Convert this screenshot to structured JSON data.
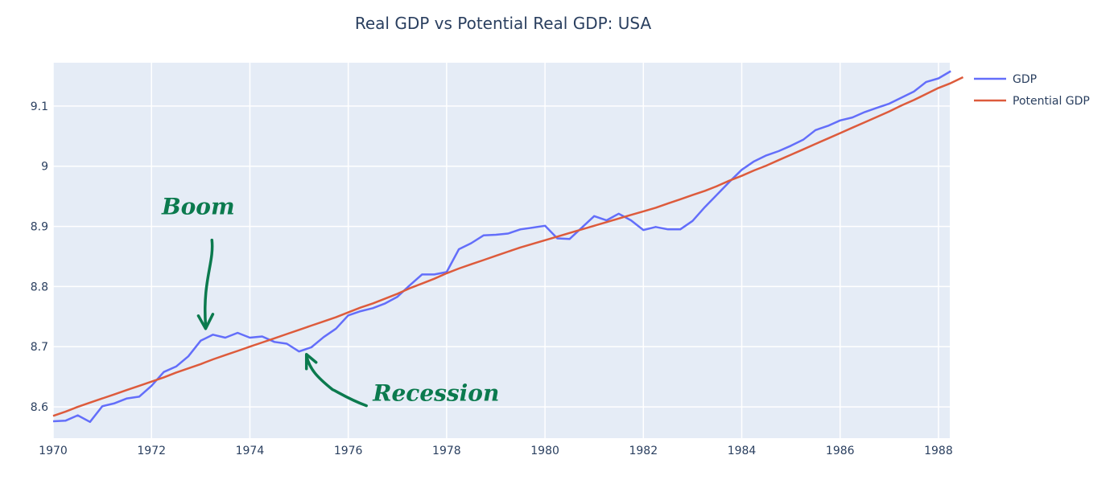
{
  "chart_data": {
    "type": "line",
    "title": "Real GDP vs Potential Real GDP: USA",
    "xlabel": "",
    "ylabel": "",
    "xlim": [
      1970,
      1988.23
    ],
    "ylim": [
      8.548,
      9.172
    ],
    "grid": true,
    "legend_position": "top-right",
    "x_ticks": [
      "1970",
      "1972",
      "1974",
      "1976",
      "1978",
      "1980",
      "1982",
      "1984",
      "1986",
      "1988"
    ],
    "y_ticks": [
      "8.6",
      "8.7",
      "8.8",
      "9",
      "9.1",
      "8.9"
    ],
    "y_tick_values": [
      8.6,
      8.7,
      8.8,
      9.0,
      9.1,
      8.9
    ],
    "x_tick_values": [
      1970,
      1972,
      1974,
      1976,
      1978,
      1980,
      1982,
      1984,
      1986,
      1988
    ],
    "colors": {
      "gdp": "#636efa",
      "potential": "#dd5b3c",
      "annotation": "#0b7a4e",
      "plot_bg": "#e5ecf6"
    },
    "series": [
      {
        "name": "GDP",
        "x_start": 1970,
        "x_step": 0.25,
        "values": [
          8.576,
          8.577,
          8.586,
          8.575,
          8.601,
          8.606,
          8.614,
          8.617,
          8.635,
          8.658,
          8.667,
          8.684,
          8.71,
          8.72,
          8.715,
          8.723,
          8.715,
          8.717,
          8.708,
          8.705,
          8.692,
          8.699,
          8.716,
          8.73,
          8.752,
          8.759,
          8.764,
          8.772,
          8.783,
          8.802,
          8.82,
          8.82,
          8.824,
          8.862,
          8.872,
          8.885,
          8.886,
          8.888,
          8.895,
          8.898,
          8.901,
          8.88,
          8.879,
          8.898,
          8.917,
          8.91,
          8.921,
          8.91,
          8.894,
          8.899,
          8.895,
          8.895,
          8.909,
          8.932,
          8.953,
          8.974,
          8.994,
          9.008,
          9.018,
          9.025,
          9.034,
          9.044,
          9.06,
          9.067,
          9.076,
          9.081,
          9.09,
          9.097,
          9.104,
          9.114,
          9.124,
          9.14,
          9.146,
          9.158
        ]
      },
      {
        "name": "Potential GDP",
        "x_start": 1970,
        "x_step": 0.25,
        "values": [
          8.585,
          8.592,
          8.6,
          8.607,
          8.614,
          8.621,
          8.628,
          8.635,
          8.642,
          8.649,
          8.657,
          8.664,
          8.671,
          8.679,
          8.686,
          8.693,
          8.7,
          8.707,
          8.714,
          8.721,
          8.728,
          8.735,
          8.742,
          8.749,
          8.757,
          8.765,
          8.772,
          8.78,
          8.788,
          8.797,
          8.805,
          8.813,
          8.822,
          8.83,
          8.837,
          8.844,
          8.851,
          8.858,
          8.865,
          8.871,
          8.877,
          8.883,
          8.889,
          8.895,
          8.901,
          8.907,
          8.913,
          8.919,
          8.925,
          8.931,
          8.938,
          8.945,
          8.952,
          8.959,
          8.967,
          8.976,
          8.984,
          8.993,
          9.001,
          9.01,
          9.019,
          9.028,
          9.037,
          9.046,
          9.055,
          9.064,
          9.073,
          9.082,
          9.091,
          9.101,
          9.11,
          9.12,
          9.13,
          9.138,
          9.148
        ]
      }
    ],
    "annotations": [
      {
        "text": "Boom",
        "x": 1972.95,
        "y": 8.92,
        "arrow_to": [
          1973.1,
          8.73
        ]
      },
      {
        "text": "Recession",
        "x": 1976.5,
        "y": 8.61,
        "arrow_to": [
          1975.15,
          8.69
        ]
      }
    ]
  }
}
